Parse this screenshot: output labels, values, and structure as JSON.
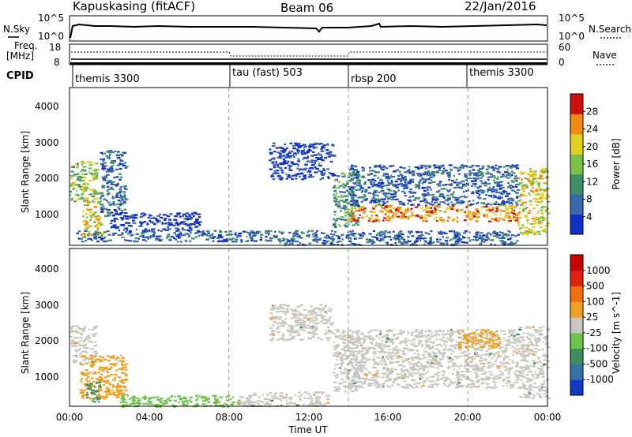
{
  "header": {
    "title_left": "Kapuskasing (fitACF)",
    "title_center": "Beam 06",
    "title_right": "22/Jan/2016"
  },
  "top_panel": {
    "noise_sky_label": "N.Sky",
    "noise_search_label": "N.Search",
    "noise_ticks_left": [
      "10^5",
      "10^0"
    ],
    "noise_ticks_right": [
      "10^5",
      "10^0"
    ],
    "freq_label_1": "Freq.",
    "freq_label_2": "[MHz]",
    "freq_ticks": [
      "18",
      "8"
    ],
    "nave_label": "Nave",
    "nave_ticks": [
      "60",
      "0"
    ],
    "cpid_label": "CPID",
    "modes": [
      {
        "name": "themis 3300",
        "start_hour": 0
      },
      {
        "name": "tau (fast) 503",
        "start_hour": 8
      },
      {
        "name": "rbsp 200",
        "start_hour": 14
      },
      {
        "name": "themis 3300",
        "start_hour": 20
      }
    ]
  },
  "chart_data": [
    {
      "type": "heatmap",
      "panel": "power",
      "ylabel": "Slant Range [km]",
      "y_ticks": [
        "1000",
        "2000",
        "3000",
        "4000"
      ],
      "ylim": [
        180,
        4500
      ],
      "xlim": [
        0,
        24
      ],
      "x_dashed_lines": [
        8,
        14,
        20
      ],
      "colorbar_label": "Power [dB]",
      "colorbar_ticks": [
        "4",
        "8",
        "12",
        "16",
        "20",
        "24",
        "28"
      ],
      "colorbar_colors": [
        "#1030c8",
        "#3b66b0",
        "#3f8f64",
        "#77c246",
        "#e1d020",
        "#f08a10",
        "#d01010"
      ],
      "echo_regions": [
        {
          "x0": 0.0,
          "x1": 1.4,
          "y0": 1400,
          "y1": 2500,
          "level": 3
        },
        {
          "x0": 0.6,
          "x1": 1.6,
          "y0": 400,
          "y1": 1500,
          "level": 4
        },
        {
          "x0": 1.5,
          "x1": 2.8,
          "y0": 1000,
          "y1": 2800,
          "level": 1
        },
        {
          "x0": 0.3,
          "x1": 10.5,
          "y0": 300,
          "y1": 600,
          "level": 1
        },
        {
          "x0": 2.0,
          "x1": 6.5,
          "y0": 600,
          "y1": 1100,
          "level": 0
        },
        {
          "x0": 10.0,
          "x1": 13.2,
          "y0": 2000,
          "y1": 3000,
          "level": 0
        },
        {
          "x0": 13.2,
          "x1": 14.5,
          "y0": 700,
          "y1": 2200,
          "level": 2
        },
        {
          "x0": 14.0,
          "x1": 22.5,
          "y0": 850,
          "y1": 1300,
          "level": 5
        },
        {
          "x0": 14.0,
          "x1": 22.5,
          "y0": 1300,
          "y1": 2400,
          "level": 1
        },
        {
          "x0": 22.5,
          "x1": 24.0,
          "y0": 500,
          "y1": 2300,
          "level": 4
        },
        {
          "x0": 10.5,
          "x1": 22.5,
          "y0": 200,
          "y1": 600,
          "level": 1
        }
      ]
    },
    {
      "type": "heatmap",
      "panel": "velocity",
      "xlabel": "Time UT",
      "ylabel": "Slant Range [km]",
      "x_ticks": [
        "00:00",
        "04:00",
        "08:00",
        "12:00",
        "16:00",
        "20:00",
        "00:00"
      ],
      "y_ticks": [
        "1000",
        "2000",
        "3000",
        "4000"
      ],
      "ylim": [
        180,
        4500
      ],
      "xlim": [
        0,
        24
      ],
      "x_dashed_lines": [
        8,
        14,
        20
      ],
      "colorbar_label": "Velocity [m s^-1]",
      "colorbar_ticks": [
        "1000",
        "500",
        "100",
        "25",
        "-25",
        "-100",
        "-500",
        "-1000"
      ],
      "colorbar_colors": [
        "#1438c8",
        "#3a70a8",
        "#3f8f5e",
        "#6cc24a",
        "#c8c8c0",
        "#f0a020",
        "#f07010",
        "#e02010",
        "#c80000"
      ],
      "echo_regions": [
        {
          "x0": 0.0,
          "x1": 1.3,
          "y0": 1400,
          "y1": 2400,
          "level": "gray"
        },
        {
          "x0": 0.5,
          "x1": 2.8,
          "y0": 400,
          "y1": 1600,
          "level": "orange"
        },
        {
          "x0": 0.8,
          "x1": 1.5,
          "y0": 300,
          "y1": 900,
          "level": "green"
        },
        {
          "x0": 2.5,
          "x1": 8.5,
          "y0": 180,
          "y1": 500,
          "level": "lightgreen"
        },
        {
          "x0": 8.5,
          "x1": 13.0,
          "y0": 200,
          "y1": 600,
          "level": "gray"
        },
        {
          "x0": 10.0,
          "x1": 13.2,
          "y0": 2000,
          "y1": 3000,
          "level": "gray"
        },
        {
          "x0": 13.2,
          "x1": 14.5,
          "y0": 600,
          "y1": 2300,
          "level": "gray"
        },
        {
          "x0": 14.0,
          "x1": 22.5,
          "y0": 700,
          "y1": 1400,
          "level": "gray"
        },
        {
          "x0": 14.0,
          "x1": 22.5,
          "y0": 1400,
          "y1": 2300,
          "level": "gray"
        },
        {
          "x0": 19.5,
          "x1": 21.5,
          "y0": 1800,
          "y1": 2300,
          "level": "orange"
        },
        {
          "x0": 22.5,
          "x1": 24.0,
          "y0": 400,
          "y1": 2400,
          "level": "gray"
        }
      ]
    }
  ]
}
